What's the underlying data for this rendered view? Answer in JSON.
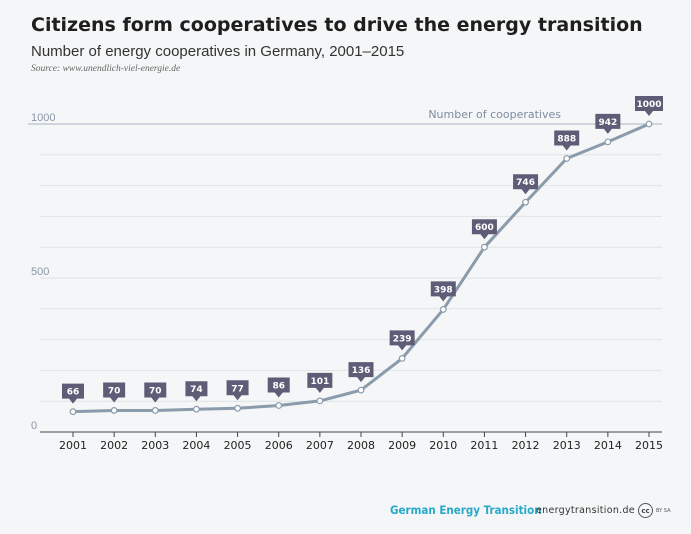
{
  "title": "Citizens form cooperatives to drive the energy transition",
  "subtitle": "Number of energy cooperatives in Germany, 2001–2015",
  "source": "Source: www.unendlich-viel-energie.de",
  "footer": {
    "brand": "German Energy Transition",
    "site": "energytransition.de",
    "cc_icon": "cc",
    "cc_text": "BY SA"
  },
  "colors": {
    "line": "#8a9bab",
    "label_box": "#5e5c76",
    "grid": "#dfe3e7",
    "brand": "#27a9c9"
  },
  "chart_data": {
    "type": "line",
    "title": "Citizens form cooperatives to drive the energy transition",
    "subtitle": "Number of energy cooperatives in Germany, 2001–2015",
    "xlabel": "",
    "ylabel": "",
    "x": [
      2001,
      2002,
      2003,
      2004,
      2005,
      2006,
      2007,
      2008,
      2009,
      2010,
      2011,
      2012,
      2013,
      2014,
      2015
    ],
    "x_tick_labels": [
      "2001",
      "2002",
      "2003",
      "2004",
      "2005",
      "2006",
      "2007",
      "2008",
      "2009",
      "2010",
      "2011",
      "2012",
      "2013",
      "2014",
      "2015"
    ],
    "series": [
      {
        "name": "Number of cooperatives",
        "values": [
          66,
          70,
          70,
          74,
          77,
          86,
          101,
          136,
          239,
          398,
          600,
          746,
          888,
          942,
          1000
        ],
        "data_labels": [
          "66",
          "70",
          "70",
          "74",
          "77",
          "86",
          "101",
          "136",
          "239",
          "398",
          "600",
          "746",
          "888",
          "942",
          "1000"
        ]
      }
    ],
    "ylim": [
      0,
      1000
    ],
    "y_ticks": [
      0,
      500,
      1000
    ],
    "y_tick_labels": [
      "0",
      "500",
      "1000"
    ],
    "grid": true,
    "legend": "inline label near top-right end of line"
  }
}
